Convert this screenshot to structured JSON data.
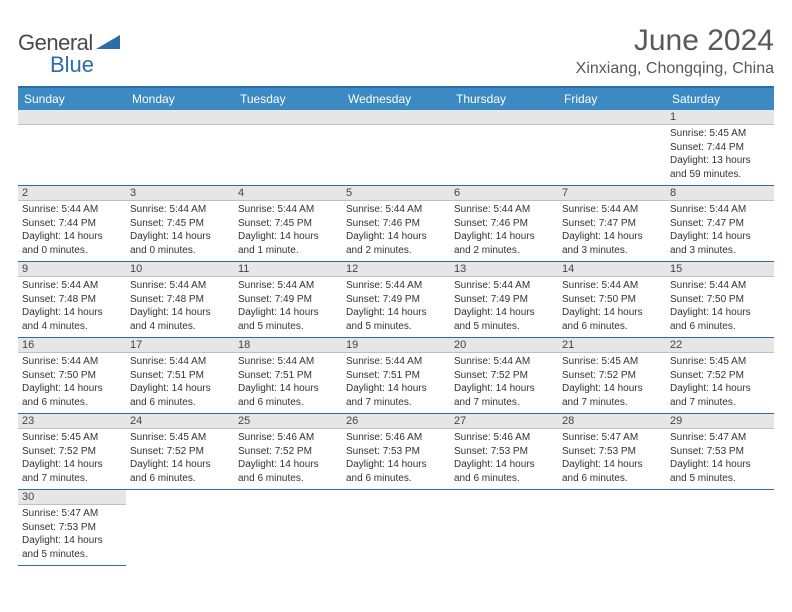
{
  "logo": {
    "part1": "General",
    "part2": "Blue"
  },
  "title": "June 2024",
  "location": "Xinxiang, Chongqing, China",
  "colors": {
    "header_bg": "#3b8ac4",
    "header_border": "#2c6ca8",
    "daynum_bg": "#e6e6e6",
    "text": "#333333",
    "title_text": "#595959"
  },
  "day_headers": [
    "Sunday",
    "Monday",
    "Tuesday",
    "Wednesday",
    "Thursday",
    "Friday",
    "Saturday"
  ],
  "weeks": [
    [
      null,
      null,
      null,
      null,
      null,
      null,
      {
        "n": "1",
        "sr": "Sunrise: 5:45 AM",
        "ss": "Sunset: 7:44 PM",
        "dl": "Daylight: 13 hours and 59 minutes."
      }
    ],
    [
      {
        "n": "2",
        "sr": "Sunrise: 5:44 AM",
        "ss": "Sunset: 7:44 PM",
        "dl": "Daylight: 14 hours and 0 minutes."
      },
      {
        "n": "3",
        "sr": "Sunrise: 5:44 AM",
        "ss": "Sunset: 7:45 PM",
        "dl": "Daylight: 14 hours and 0 minutes."
      },
      {
        "n": "4",
        "sr": "Sunrise: 5:44 AM",
        "ss": "Sunset: 7:45 PM",
        "dl": "Daylight: 14 hours and 1 minute."
      },
      {
        "n": "5",
        "sr": "Sunrise: 5:44 AM",
        "ss": "Sunset: 7:46 PM",
        "dl": "Daylight: 14 hours and 2 minutes."
      },
      {
        "n": "6",
        "sr": "Sunrise: 5:44 AM",
        "ss": "Sunset: 7:46 PM",
        "dl": "Daylight: 14 hours and 2 minutes."
      },
      {
        "n": "7",
        "sr": "Sunrise: 5:44 AM",
        "ss": "Sunset: 7:47 PM",
        "dl": "Daylight: 14 hours and 3 minutes."
      },
      {
        "n": "8",
        "sr": "Sunrise: 5:44 AM",
        "ss": "Sunset: 7:47 PM",
        "dl": "Daylight: 14 hours and 3 minutes."
      }
    ],
    [
      {
        "n": "9",
        "sr": "Sunrise: 5:44 AM",
        "ss": "Sunset: 7:48 PM",
        "dl": "Daylight: 14 hours and 4 minutes."
      },
      {
        "n": "10",
        "sr": "Sunrise: 5:44 AM",
        "ss": "Sunset: 7:48 PM",
        "dl": "Daylight: 14 hours and 4 minutes."
      },
      {
        "n": "11",
        "sr": "Sunrise: 5:44 AM",
        "ss": "Sunset: 7:49 PM",
        "dl": "Daylight: 14 hours and 5 minutes."
      },
      {
        "n": "12",
        "sr": "Sunrise: 5:44 AM",
        "ss": "Sunset: 7:49 PM",
        "dl": "Daylight: 14 hours and 5 minutes."
      },
      {
        "n": "13",
        "sr": "Sunrise: 5:44 AM",
        "ss": "Sunset: 7:49 PM",
        "dl": "Daylight: 14 hours and 5 minutes."
      },
      {
        "n": "14",
        "sr": "Sunrise: 5:44 AM",
        "ss": "Sunset: 7:50 PM",
        "dl": "Daylight: 14 hours and 6 minutes."
      },
      {
        "n": "15",
        "sr": "Sunrise: 5:44 AM",
        "ss": "Sunset: 7:50 PM",
        "dl": "Daylight: 14 hours and 6 minutes."
      }
    ],
    [
      {
        "n": "16",
        "sr": "Sunrise: 5:44 AM",
        "ss": "Sunset: 7:50 PM",
        "dl": "Daylight: 14 hours and 6 minutes."
      },
      {
        "n": "17",
        "sr": "Sunrise: 5:44 AM",
        "ss": "Sunset: 7:51 PM",
        "dl": "Daylight: 14 hours and 6 minutes."
      },
      {
        "n": "18",
        "sr": "Sunrise: 5:44 AM",
        "ss": "Sunset: 7:51 PM",
        "dl": "Daylight: 14 hours and 6 minutes."
      },
      {
        "n": "19",
        "sr": "Sunrise: 5:44 AM",
        "ss": "Sunset: 7:51 PM",
        "dl": "Daylight: 14 hours and 7 minutes."
      },
      {
        "n": "20",
        "sr": "Sunrise: 5:44 AM",
        "ss": "Sunset: 7:52 PM",
        "dl": "Daylight: 14 hours and 7 minutes."
      },
      {
        "n": "21",
        "sr": "Sunrise: 5:45 AM",
        "ss": "Sunset: 7:52 PM",
        "dl": "Daylight: 14 hours and 7 minutes."
      },
      {
        "n": "22",
        "sr": "Sunrise: 5:45 AM",
        "ss": "Sunset: 7:52 PM",
        "dl": "Daylight: 14 hours and 7 minutes."
      }
    ],
    [
      {
        "n": "23",
        "sr": "Sunrise: 5:45 AM",
        "ss": "Sunset: 7:52 PM",
        "dl": "Daylight: 14 hours and 7 minutes."
      },
      {
        "n": "24",
        "sr": "Sunrise: 5:45 AM",
        "ss": "Sunset: 7:52 PM",
        "dl": "Daylight: 14 hours and 6 minutes."
      },
      {
        "n": "25",
        "sr": "Sunrise: 5:46 AM",
        "ss": "Sunset: 7:52 PM",
        "dl": "Daylight: 14 hours and 6 minutes."
      },
      {
        "n": "26",
        "sr": "Sunrise: 5:46 AM",
        "ss": "Sunset: 7:53 PM",
        "dl": "Daylight: 14 hours and 6 minutes."
      },
      {
        "n": "27",
        "sr": "Sunrise: 5:46 AM",
        "ss": "Sunset: 7:53 PM",
        "dl": "Daylight: 14 hours and 6 minutes."
      },
      {
        "n": "28",
        "sr": "Sunrise: 5:47 AM",
        "ss": "Sunset: 7:53 PM",
        "dl": "Daylight: 14 hours and 6 minutes."
      },
      {
        "n": "29",
        "sr": "Sunrise: 5:47 AM",
        "ss": "Sunset: 7:53 PM",
        "dl": "Daylight: 14 hours and 5 minutes."
      }
    ],
    [
      {
        "n": "30",
        "sr": "Sunrise: 5:47 AM",
        "ss": "Sunset: 7:53 PM",
        "dl": "Daylight: 14 hours and 5 minutes."
      },
      null,
      null,
      null,
      null,
      null,
      null
    ]
  ]
}
